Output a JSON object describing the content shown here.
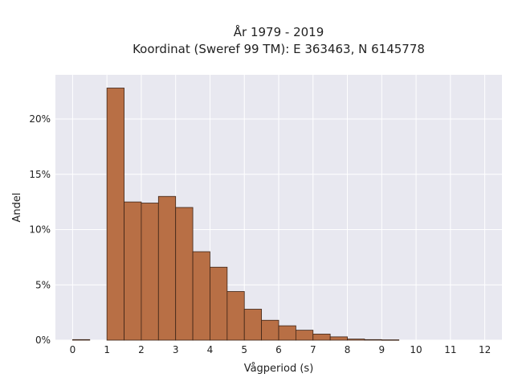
{
  "chart_data": {
    "type": "bar",
    "title_line1": "År 1979 - 2019",
    "title_line2": "Koordinat (Sweref 99 TM): E 363463, N 6145778",
    "xlabel": "Vågperiod (s)",
    "ylabel": "Andel",
    "xlim": [
      -0.5,
      12.5
    ],
    "ylim": [
      0,
      0.24
    ],
    "x_ticks": [
      0,
      1,
      2,
      3,
      4,
      5,
      6,
      7,
      8,
      9,
      10,
      11,
      12
    ],
    "x_tick_labels": [
      "0",
      "1",
      "2",
      "3",
      "4",
      "5",
      "6",
      "7",
      "8",
      "9",
      "10",
      "11",
      "12"
    ],
    "y_ticks": [
      0,
      0.05,
      0.1,
      0.15,
      0.2
    ],
    "y_tick_labels": [
      "0%",
      "5%",
      "10%",
      "15%",
      "20%"
    ],
    "bin_width": 0.5,
    "bins": [
      {
        "x0": 0.0,
        "value": 0.0005
      },
      {
        "x0": 1.0,
        "value": 0.228
      },
      {
        "x0": 1.5,
        "value": 0.125
      },
      {
        "x0": 2.0,
        "value": 0.124
      },
      {
        "x0": 2.5,
        "value": 0.13
      },
      {
        "x0": 3.0,
        "value": 0.12
      },
      {
        "x0": 3.5,
        "value": 0.08
      },
      {
        "x0": 4.0,
        "value": 0.066
      },
      {
        "x0": 4.5,
        "value": 0.044
      },
      {
        "x0": 5.0,
        "value": 0.028
      },
      {
        "x0": 5.5,
        "value": 0.018
      },
      {
        "x0": 6.0,
        "value": 0.013
      },
      {
        "x0": 6.5,
        "value": 0.009
      },
      {
        "x0": 7.0,
        "value": 0.0055
      },
      {
        "x0": 7.5,
        "value": 0.003
      },
      {
        "x0": 8.0,
        "value": 0.001
      },
      {
        "x0": 8.5,
        "value": 0.0005
      },
      {
        "x0": 9.0,
        "value": 0.0003
      }
    ],
    "grid": true,
    "colors": {
      "bar_fill": "#b86f45",
      "bar_edge": "#3d2416",
      "plot_background": "#e8e8f0",
      "grid": "#ffffff"
    }
  }
}
